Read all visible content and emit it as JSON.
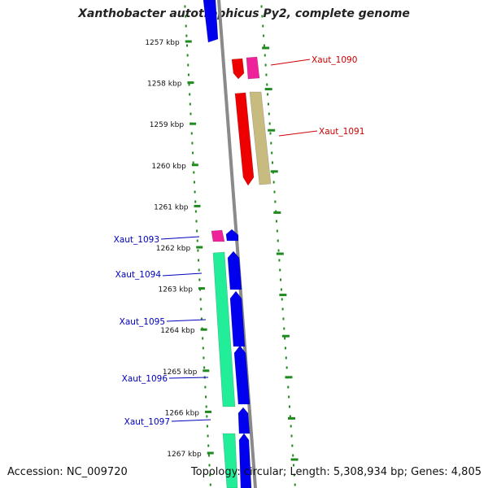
{
  "title": "Xanthobacter autotrophicus Py2, complete genome",
  "footer": {
    "accession": "Accession: NC_009720",
    "summary": "Topology: circular; Length: 5,308,934 bp; Genes: 4,805"
  },
  "colors": {
    "backbone": "#8a8a8a",
    "tick_dots": "#1f8a1f",
    "forward_label": "#cc0000",
    "reverse_label": "#0000bb",
    "blue_gene": "#0000ee",
    "red_gene": "#ee0000",
    "pink_gene": "#ee2299",
    "tan_gene": "#c8bb80",
    "green_gene": "#22ee99"
  },
  "kbp_ticks": [
    {
      "kbp": 1257,
      "label": "1257 kbp"
    },
    {
      "kbp": 1258,
      "label": "1258 kbp"
    },
    {
      "kbp": 1259,
      "label": "1259 kbp"
    },
    {
      "kbp": 1260,
      "label": "1260 kbp"
    },
    {
      "kbp": 1261,
      "label": "1261 kbp"
    },
    {
      "kbp": 1262,
      "label": "1262 kbp"
    },
    {
      "kbp": 1263,
      "label": "1263 kbp"
    },
    {
      "kbp": 1264,
      "label": "1264 kbp"
    },
    {
      "kbp": 1265,
      "label": "1265 kbp"
    },
    {
      "kbp": 1266,
      "label": "1266 kbp"
    },
    {
      "kbp": 1267,
      "label": "1267 kbp"
    }
  ],
  "gene_labels": [
    {
      "name": "Xaut_1090",
      "strand": "forward"
    },
    {
      "name": "Xaut_1091",
      "strand": "forward"
    },
    {
      "name": "Xaut_1093",
      "strand": "reverse"
    },
    {
      "name": "Xaut_1094",
      "strand": "reverse"
    },
    {
      "name": "Xaut_1095",
      "strand": "reverse"
    },
    {
      "name": "Xaut_1096",
      "strand": "reverse"
    },
    {
      "name": "Xaut_1097",
      "strand": "reverse"
    }
  ]
}
